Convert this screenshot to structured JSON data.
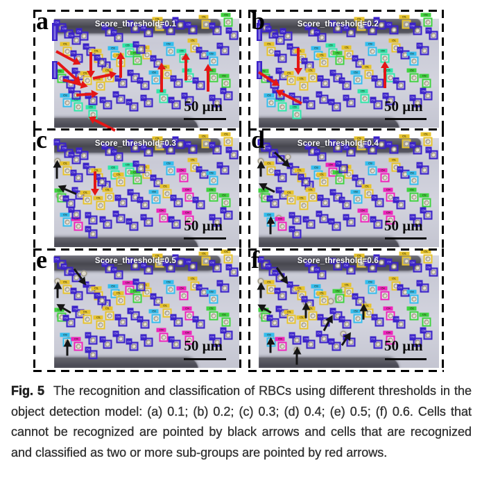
{
  "figure": {
    "scale_label": "50 μm",
    "arrow_colors": {
      "red": "#e41616",
      "black": "#151515"
    },
    "palette": {
      "b": "#3b22c8",
      "y": "#e7c32b",
      "g": "#3fd23f",
      "c": "#33bdee",
      "m": "#ee22bb",
      "t": "#2fe6a8",
      "v": "#3b22c8"
    },
    "tag_labels": {
      "b": "C50",
      "y": "C51",
      "g": "C52",
      "c": "C53",
      "m": "C54",
      "t": "C55",
      "v": ""
    },
    "base_cells": [
      [
        0.5,
        12,
        "v"
      ],
      [
        4,
        8,
        "b"
      ],
      [
        8,
        14,
        "b"
      ],
      [
        12,
        20,
        "b"
      ],
      [
        30,
        12,
        "b"
      ],
      [
        35,
        17,
        "b"
      ],
      [
        44,
        9,
        "b"
      ],
      [
        51,
        13,
        "b"
      ],
      [
        57,
        7,
        "y"
      ],
      [
        63,
        11,
        "b"
      ],
      [
        68,
        6,
        "b"
      ],
      [
        75,
        10,
        "b"
      ],
      [
        82,
        5,
        "y"
      ],
      [
        88,
        11,
        "b"
      ],
      [
        94,
        3,
        "g"
      ],
      [
        97,
        15,
        "b"
      ],
      [
        7,
        30,
        "y"
      ],
      [
        13,
        36,
        "b"
      ],
      [
        20,
        30,
        "b"
      ],
      [
        24,
        36,
        "y"
      ],
      [
        28,
        43,
        "b"
      ],
      [
        33,
        34,
        "c"
      ],
      [
        36,
        40,
        "y"
      ],
      [
        41,
        31,
        "m"
      ],
      [
        45,
        38,
        "g"
      ],
      [
        50,
        33,
        "y"
      ],
      [
        56,
        41,
        "b"
      ],
      [
        63,
        30,
        "c"
      ],
      [
        70,
        36,
        "m"
      ],
      [
        76,
        27,
        "y"
      ],
      [
        81,
        33,
        "b"
      ],
      [
        86,
        39,
        "c"
      ],
      [
        92,
        29,
        "b"
      ],
      [
        4,
        55,
        "g"
      ],
      [
        9,
        60,
        "b"
      ],
      [
        14,
        52,
        "b"
      ],
      [
        18,
        57,
        "y"
      ],
      [
        25,
        62,
        "y"
      ],
      [
        30,
        54,
        "y"
      ],
      [
        37,
        59,
        "b"
      ],
      [
        44,
        54,
        "b"
      ],
      [
        49,
        61,
        "b"
      ],
      [
        55,
        56,
        "c"
      ],
      [
        61,
        51,
        "y"
      ],
      [
        67,
        59,
        "b"
      ],
      [
        73,
        54,
        "m"
      ],
      [
        79,
        61,
        "b"
      ],
      [
        86,
        54,
        "g"
      ],
      [
        93,
        59,
        "g"
      ],
      [
        7,
        77,
        "c"
      ],
      [
        13,
        81,
        "m"
      ],
      [
        21,
        75,
        "b"
      ],
      [
        29,
        79,
        "b"
      ],
      [
        36,
        74,
        "b"
      ],
      [
        43,
        81,
        "b"
      ],
      [
        51,
        77,
        "b"
      ],
      [
        59,
        73,
        "m"
      ],
      [
        66,
        79,
        "b"
      ],
      [
        73,
        75,
        "b"
      ],
      [
        88,
        77,
        "b"
      ],
      [
        94,
        71,
        "b"
      ],
      [
        0.5,
        47,
        "v"
      ],
      [
        16,
        16,
        "b"
      ],
      [
        12,
        70,
        "b"
      ],
      [
        26,
        40,
        "b"
      ],
      [
        47,
        28,
        "b"
      ],
      [
        21,
        88,
        "b"
      ]
    ],
    "panels": [
      {
        "id": "a",
        "letter": "a",
        "title": "Score_threshold=0.1",
        "recolor": {
          "23": "t",
          "28": "t",
          "45": "t",
          "50": "t",
          "56": "t",
          "66": "t"
        },
        "hide": [],
        "faint": [],
        "arrows": [
          [
            20,
            27,
            14,
            90,
            "r"
          ],
          [
            1,
            26,
            15,
            28,
            "r"
          ],
          [
            2,
            36,
            17,
            42,
            "r"
          ],
          [
            5,
            52,
            14,
            15,
            "r"
          ],
          [
            21,
            51,
            13,
            -12,
            "r"
          ],
          [
            12,
            66,
            12,
            -4,
            "r"
          ],
          [
            36,
            50,
            14,
            -90,
            "r"
          ],
          [
            58,
            64,
            16,
            -90,
            "r"
          ],
          [
            71,
            53,
            15,
            -90,
            "r"
          ],
          [
            83,
            63,
            15,
            -90,
            "r"
          ],
          [
            33,
            99,
            16,
            207,
            "r"
          ]
        ]
      },
      {
        "id": "b",
        "letter": "b",
        "title": "Score_threshold=0.2",
        "recolor": {
          "23": "t",
          "28": "t",
          "45": "t",
          "50": "t",
          "56": "t",
          "66": "t"
        },
        "hide": [
          64,
          65
        ],
        "faint": [],
        "arrows": [
          [
            22,
            23,
            15,
            90,
            "r"
          ],
          [
            0,
            45,
            14,
            33,
            "r"
          ],
          [
            70,
            60,
            15,
            -90,
            "r"
          ],
          [
            24,
            74,
            16,
            207,
            "r"
          ]
        ]
      },
      {
        "id": "c",
        "letter": "c",
        "title": "Score_threshold=0.3",
        "recolor": {
          "21": "t",
          "23": "t",
          "14": "y",
          "58": "m"
        },
        "hide": [
          0,
          61
        ],
        "faint": [
          [
            2,
            21
          ],
          [
            2.5,
            53
          ]
        ],
        "arrows": [
          [
            1.5,
            33,
            10,
            -90,
            "k"
          ],
          [
            12,
            47,
            11,
            203,
            "k"
          ],
          [
            22,
            27,
            13,
            90,
            "r"
          ]
        ]
      },
      {
        "id": "d",
        "letter": "d",
        "title": "Score_threshold=0.4",
        "recolor": {
          "14": "y",
          "58": "m"
        },
        "hide": [
          0,
          61,
          62,
          63
        ],
        "faint": [
          [
            1,
            21
          ],
          [
            16,
            17
          ],
          [
            2,
            53
          ],
          [
            11,
            73
          ]
        ],
        "arrows": [
          [
            1,
            31,
            9,
            -90,
            "k"
          ],
          [
            9,
            9,
            12,
            43,
            "k"
          ],
          [
            9,
            45,
            10,
            207,
            "k"
          ],
          [
            6.5,
            84,
            10,
            -90,
            "k"
          ]
        ]
      },
      {
        "id": "e",
        "letter": "e",
        "title": "Score_threshold=0.5",
        "recolor": {
          "14": "y",
          "58": "m"
        },
        "hide": [
          0,
          61,
          62,
          63
        ],
        "faint": [
          [
            2,
            23
          ],
          [
            16,
            16
          ],
          [
            3,
            54
          ],
          [
            8,
            75
          ]
        ],
        "arrows": [
          [
            2,
            34,
            9,
            -90,
            "k"
          ],
          [
            11,
            8,
            11,
            53,
            "k"
          ],
          [
            9,
            47,
            9,
            210,
            "k"
          ],
          [
            7,
            85,
            9,
            -90,
            "k"
          ]
        ]
      },
      {
        "id": "f",
        "letter": "f",
        "title": "Score_threshold=0.6",
        "recolor": {
          "14": "y",
          "58": "m"
        },
        "hide": [
          0,
          23,
          56,
          61,
          62,
          63,
          64,
          65,
          66
        ],
        "faint": [
          [
            1,
            23
          ],
          [
            11,
            17
          ],
          [
            2,
            54
          ],
          [
            26,
            42
          ],
          [
            40,
            41
          ],
          [
            44,
            38
          ],
          [
            47,
            30
          ],
          [
            58,
            43
          ],
          [
            47,
            70
          ],
          [
            7,
            74
          ],
          [
            21,
            84
          ]
        ],
        "arrows": [
          [
            1,
            34,
            9,
            -90,
            "k"
          ],
          [
            10,
            7,
            11,
            55,
            "k"
          ],
          [
            7,
            47,
            9,
            210,
            "k"
          ],
          [
            26,
            52,
            9,
            -90,
            "k"
          ],
          [
            36,
            63,
            10,
            -62,
            "k"
          ],
          [
            58,
            53,
            9,
            -90,
            "k"
          ],
          [
            46,
            76,
            9,
            -57,
            "k"
          ],
          [
            6.5,
            83,
            9,
            -90,
            "k"
          ],
          [
            21,
            93,
            10,
            -90,
            "k"
          ]
        ]
      }
    ]
  },
  "caption": {
    "tag": "Fig. 5",
    "text": "The recognition and classification of RBCs using different thresholds in the object detection model: (a) 0.1; (b) 0.2; (c) 0.3; (d) 0.4; (e) 0.5; (f) 0.6. Cells that cannot be recognized are pointed by black arrows and cells that are recognized and classified as two or more sub-groups are pointed by red arrows."
  }
}
